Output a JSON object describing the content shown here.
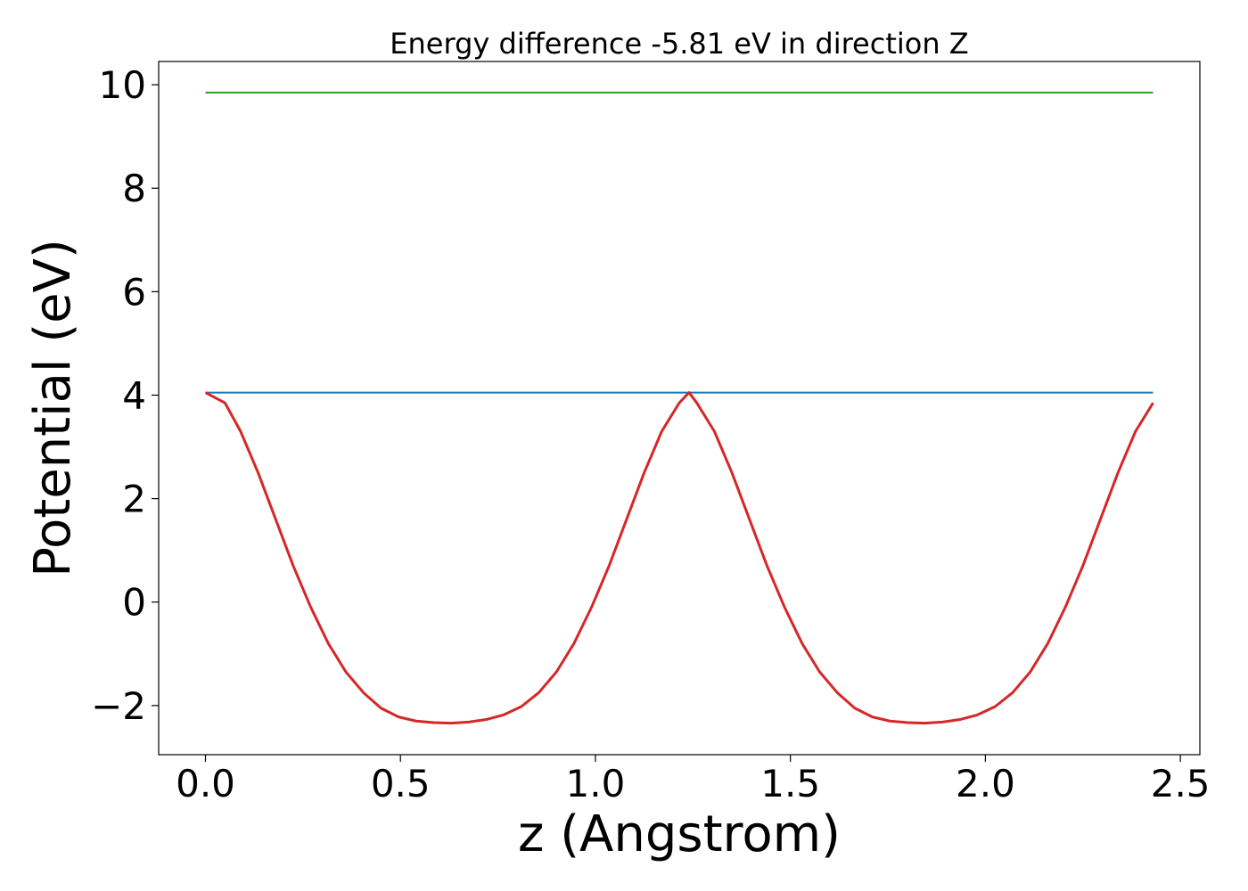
{
  "chart_data": {
    "type": "line",
    "title": "Energy difference -5.81 eV in direction Z",
    "xlabel": "z (Angstrom)",
    "ylabel": "Potential (eV)",
    "xlim": [
      -0.12,
      2.55
    ],
    "ylim": [
      -2.95,
      10.45
    ],
    "xticks": [
      0.0,
      0.5,
      1.0,
      1.5,
      2.0,
      2.5
    ],
    "xtick_labels": [
      "0.0",
      "0.5",
      "1.0",
      "1.5",
      "2.0",
      "2.5"
    ],
    "yticks": [
      -2,
      0,
      2,
      4,
      6,
      8,
      10
    ],
    "ytick_labels": [
      "−2",
      "0",
      "2",
      "4",
      "6",
      "8",
      "10"
    ],
    "grid": false,
    "series": [
      {
        "color": "#2ca02c",
        "x": [
          0.0,
          2.43
        ],
        "y": [
          9.85,
          9.85
        ]
      },
      {
        "color": "#1f77b4",
        "x": [
          0.0,
          2.43
        ],
        "y": [
          4.05,
          4.05
        ]
      },
      {
        "color": "#d62728",
        "x": [
          0.0,
          0.05,
          0.09,
          0.135,
          0.18,
          0.225,
          0.27,
          0.315,
          0.36,
          0.405,
          0.45,
          0.495,
          0.54,
          0.585,
          0.63,
          0.675,
          0.72,
          0.765,
          0.81,
          0.855,
          0.9,
          0.945,
          0.99,
          1.035,
          1.08,
          1.125,
          1.17,
          1.215,
          1.24,
          1.26,
          1.305,
          1.35,
          1.395,
          1.44,
          1.485,
          1.53,
          1.575,
          1.62,
          1.665,
          1.71,
          1.755,
          1.8,
          1.845,
          1.89,
          1.935,
          1.98,
          2.025,
          2.07,
          2.115,
          2.16,
          2.205,
          2.25,
          2.295,
          2.34,
          2.385,
          2.43
        ],
        "y": [
          4.05,
          3.85,
          3.3,
          2.5,
          1.6,
          0.7,
          -0.1,
          -0.8,
          -1.35,
          -1.75,
          -2.05,
          -2.22,
          -2.3,
          -2.33,
          -2.34,
          -2.32,
          -2.27,
          -2.18,
          -2.02,
          -1.75,
          -1.35,
          -0.8,
          -0.1,
          0.7,
          1.6,
          2.5,
          3.3,
          3.85,
          4.05,
          3.85,
          3.3,
          2.5,
          1.6,
          0.7,
          -0.1,
          -0.8,
          -1.35,
          -1.75,
          -2.05,
          -2.22,
          -2.3,
          -2.33,
          -2.34,
          -2.32,
          -2.27,
          -2.18,
          -2.02,
          -1.75,
          -1.35,
          -0.8,
          -0.1,
          0.7,
          1.6,
          2.5,
          3.3,
          3.85
        ]
      }
    ]
  }
}
